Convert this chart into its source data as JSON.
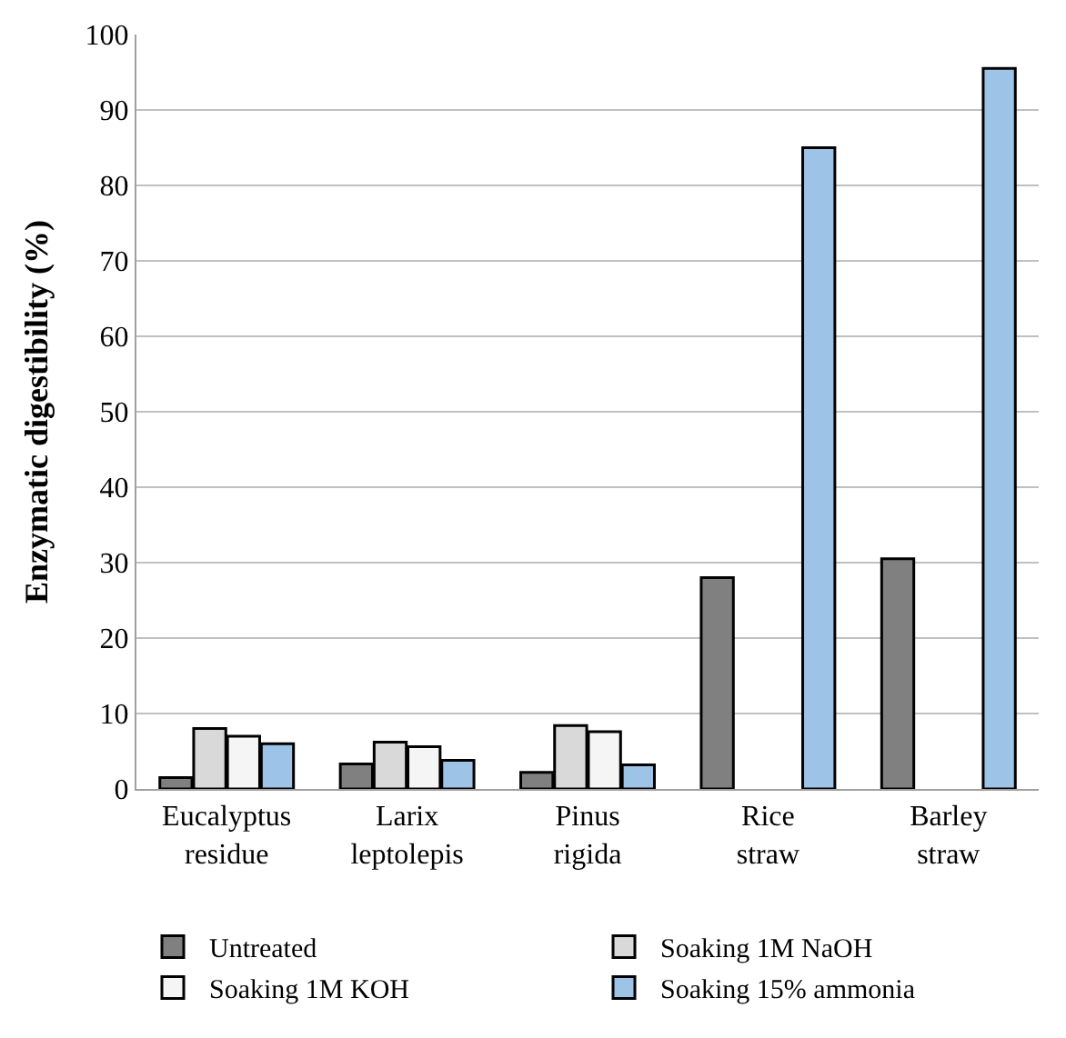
{
  "chart_data": {
    "type": "bar",
    "ylabel": "Enzymatic digestibility (%)",
    "categories": [
      "Eucalyptus residue",
      "Larix leptolepis",
      "Pinus rigida",
      "Rice straw",
      "Barley straw"
    ],
    "series": [
      {
        "name": "Untreated",
        "color": "#808080",
        "values": [
          1.5,
          3.3,
          2.2,
          28,
          30.5
        ]
      },
      {
        "name": "Soaking 1M NaOH",
        "color": "#d9d9d9",
        "values": [
          8,
          6.2,
          8.4,
          null,
          null
        ]
      },
      {
        "name": "Soaking 1M KOH",
        "color": "#f5f5f5",
        "values": [
          7,
          5.6,
          7.6,
          null,
          null
        ]
      },
      {
        "name": "Soaking 15% ammonia",
        "color": "#9dc3e6",
        "values": [
          6,
          3.8,
          3.2,
          85,
          95.5
        ]
      }
    ],
    "ylim": [
      0,
      100
    ],
    "yticks": [
      0,
      10,
      20,
      30,
      40,
      50,
      60,
      70,
      80,
      90,
      100
    ],
    "grid": "y",
    "legend": "bottom"
  }
}
